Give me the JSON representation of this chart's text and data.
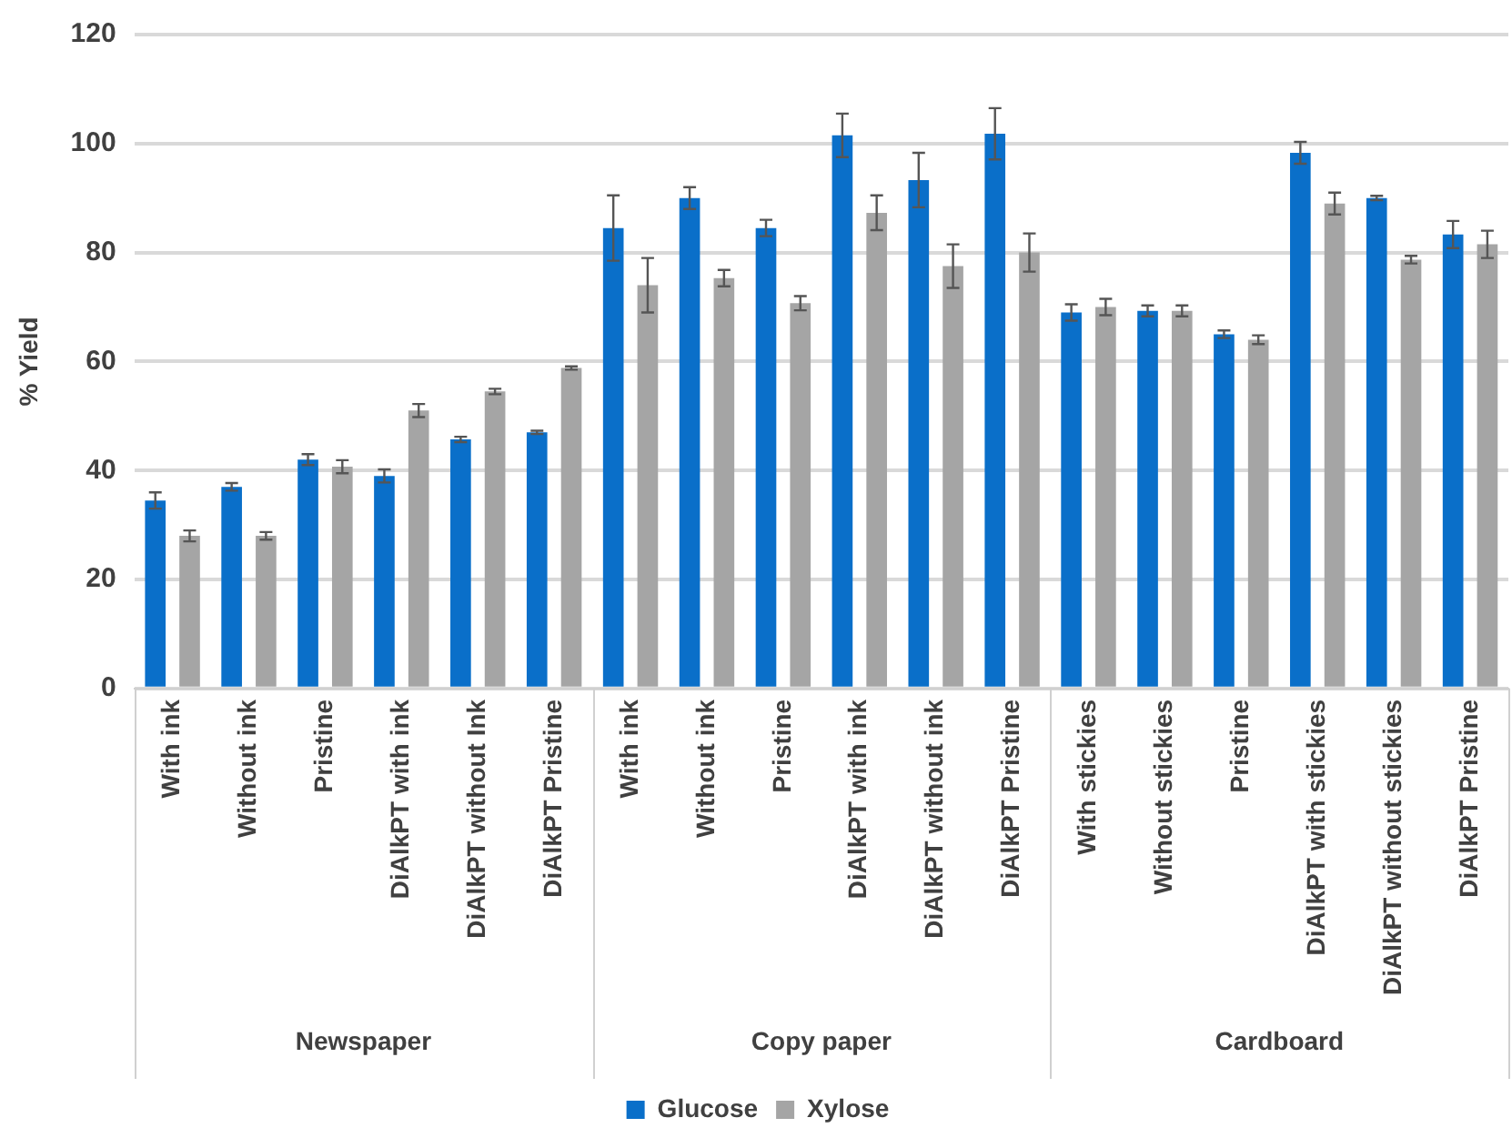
{
  "chart_data": {
    "type": "bar",
    "ylabel": "% Yield",
    "categories": [
      "With ink",
      "Without ink",
      "Pristine",
      "DiAlkPT with ink",
      "DiAlkPT without Ink",
      "DiAlkPT Pristine",
      "With ink",
      "Without ink",
      "Pristine",
      "DiAlkPT with ink",
      "DiAlkPT without ink",
      "DiAlkPT Pristine",
      "With stickies",
      "Without stickies",
      "Pristine",
      "DiAlkPT with stickies",
      "DiAlkPT without stickies",
      "DiAlkPT Pristine"
    ],
    "series": [
      {
        "name": "Glucose",
        "color": "#0a6fc9",
        "values": [
          34.5,
          37,
          42,
          39,
          45.7,
          47,
          84.5,
          90,
          84.5,
          101.5,
          93.3,
          101.8,
          69,
          69.3,
          65,
          98.3,
          90,
          83.3
        ],
        "errors": [
          1.5,
          0.7,
          1,
          1.2,
          0.5,
          0.3,
          6,
          2,
          1.5,
          4,
          5,
          4.7,
          1.5,
          1,
          0.7,
          2,
          0.4,
          2.5
        ]
      },
      {
        "name": "Xylose",
        "color": "#a5a5a5",
        "values": [
          28,
          28,
          40.7,
          51,
          54.5,
          58.8,
          74,
          75.3,
          70.7,
          87.3,
          77.5,
          80,
          70,
          69.3,
          64,
          89,
          78.7,
          81.5
        ],
        "errors": [
          1,
          0.7,
          1.2,
          1.2,
          0.5,
          0.3,
          5,
          1.5,
          1.3,
          3.2,
          4,
          3.5,
          1.5,
          1,
          0.8,
          2,
          0.7,
          2.5
        ]
      }
    ],
    "annotations": [
      "Newspaper",
      "Copy paper",
      "Cardboard"
    ],
    "ylim": [
      0,
      120
    ],
    "yticks": [
      0,
      20,
      40,
      60,
      80,
      100,
      120
    ],
    "grid": "y",
    "legend": "bottom"
  }
}
